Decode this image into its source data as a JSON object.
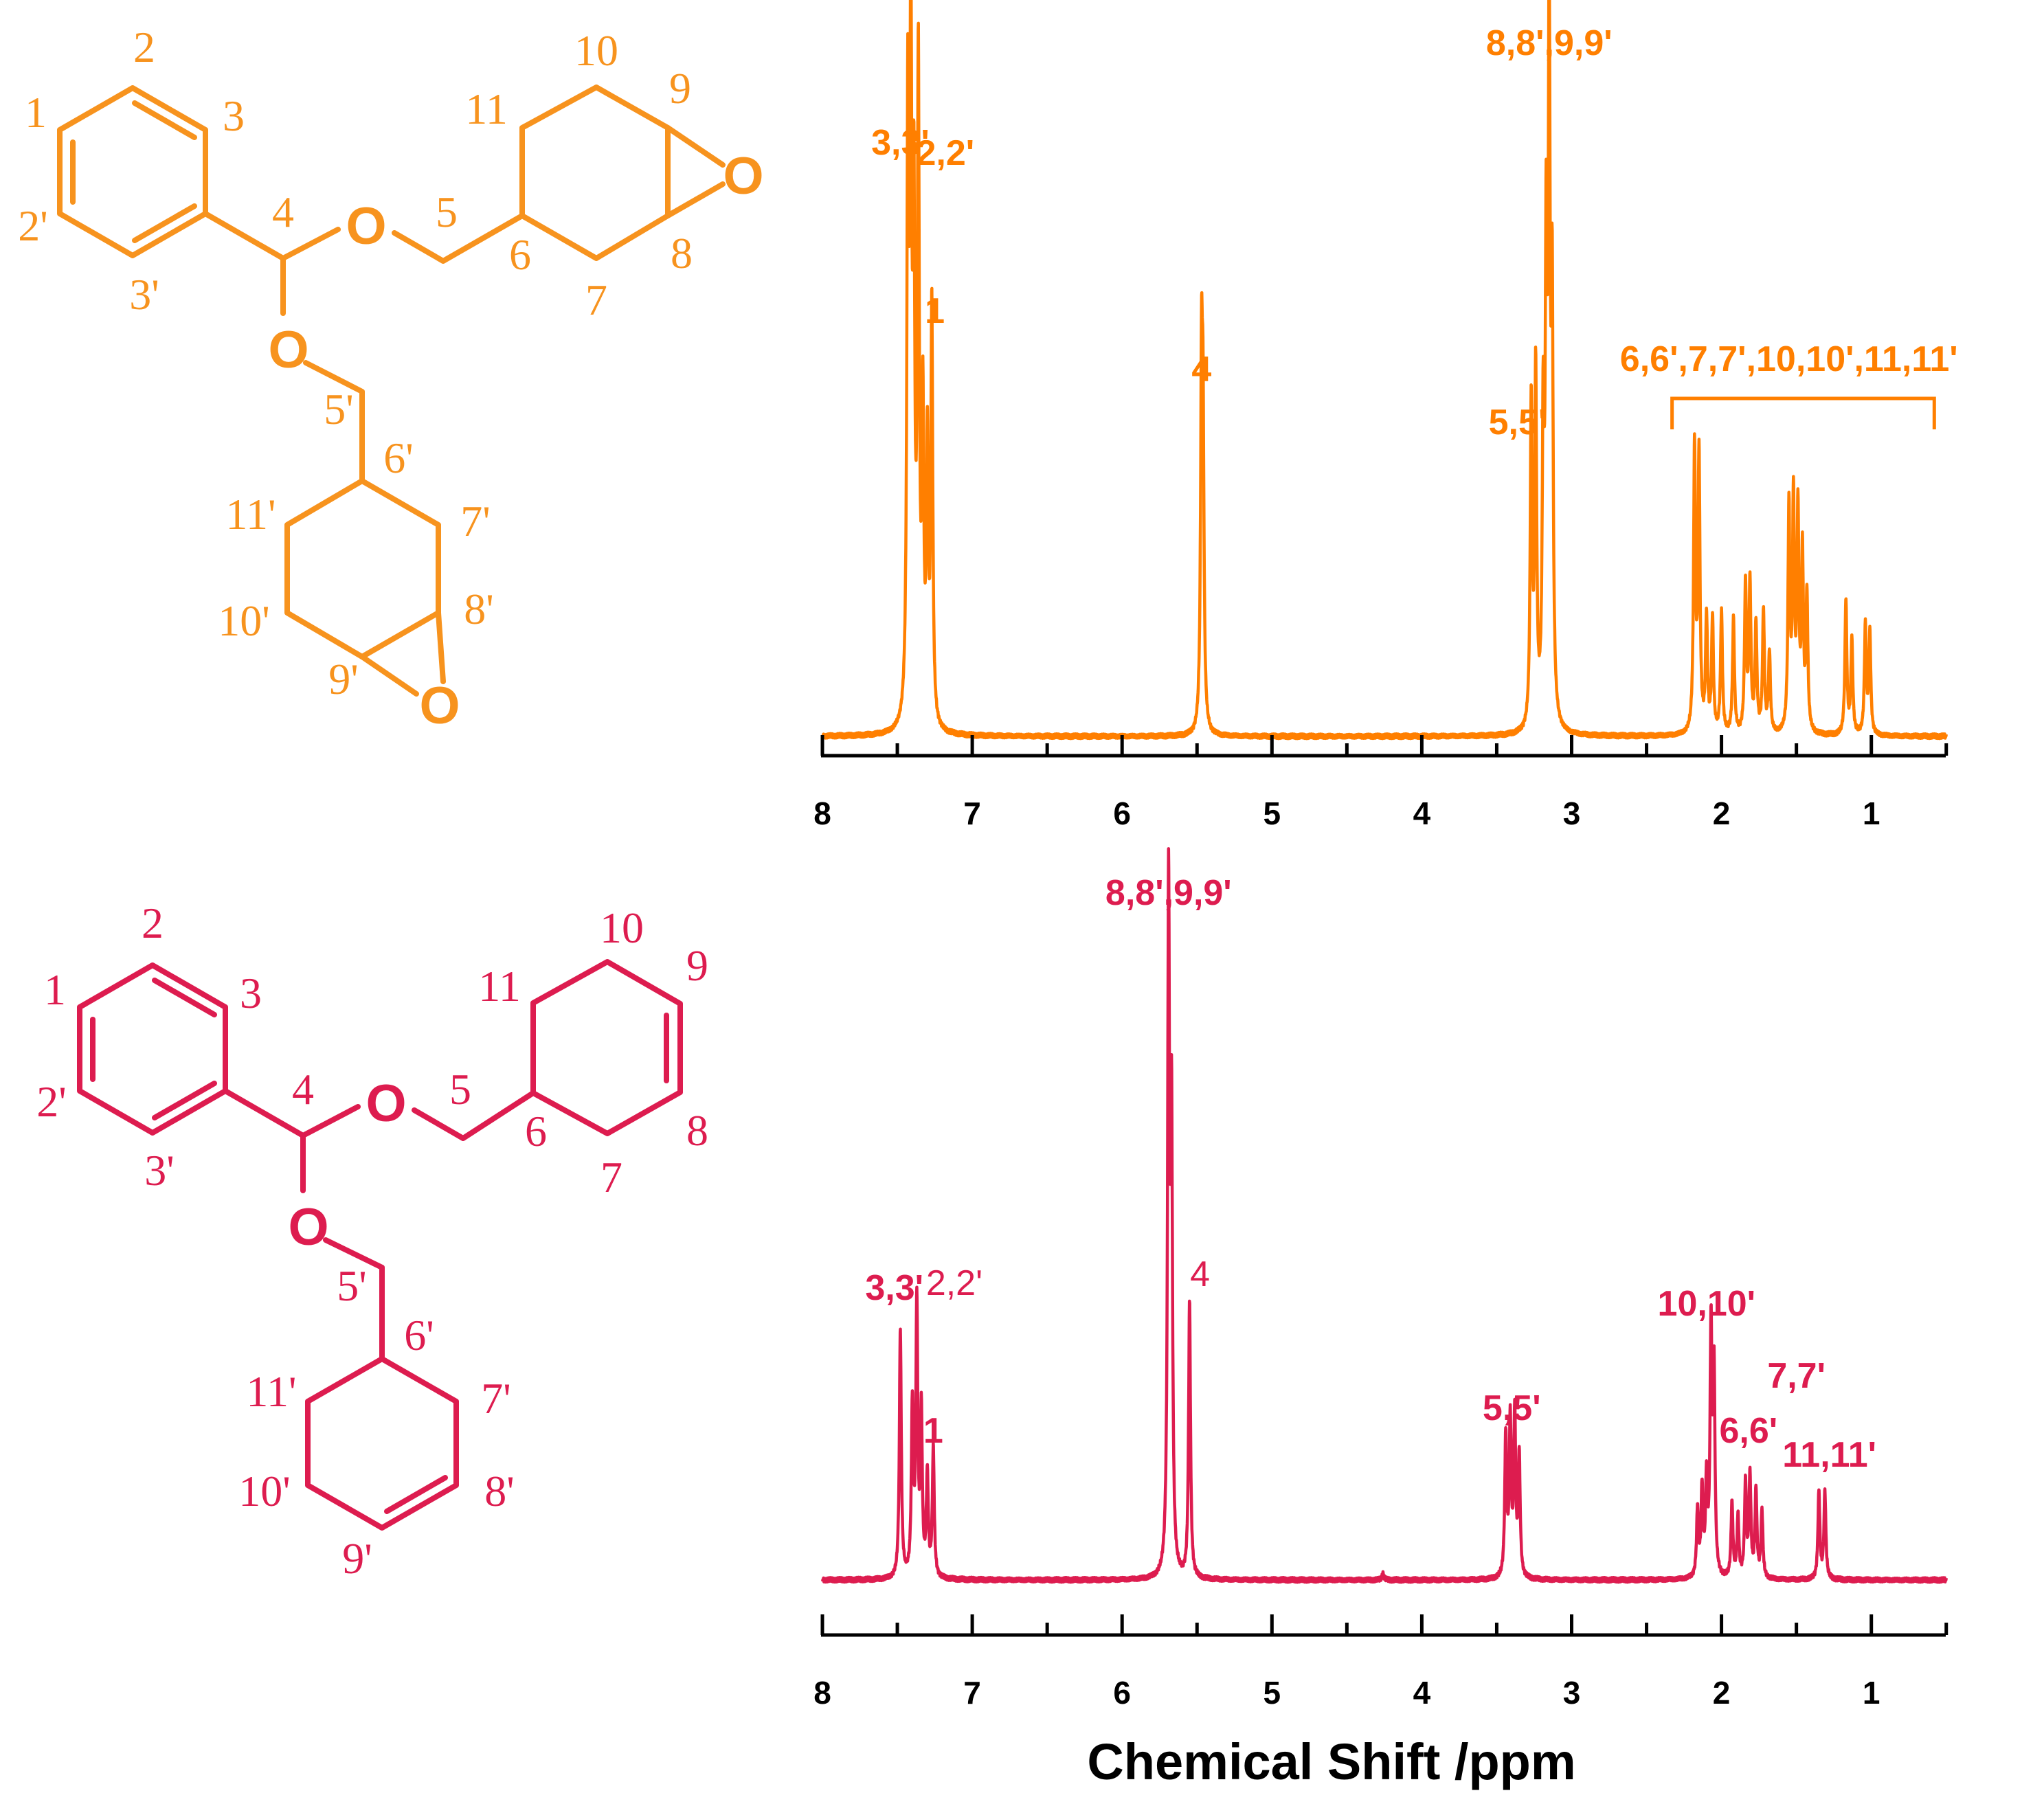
{
  "colors": {
    "top": "#FF7F00",
    "topStructure": "#F7931E",
    "bottom": "#DD1C4F",
    "axis": "#000000"
  },
  "structures": {
    "epoxide": {
      "labels": [
        "2",
        "1",
        "3",
        "2'",
        "3'",
        "4",
        "5",
        "6",
        "10",
        "11",
        "9",
        "8",
        "7",
        "5'",
        "6'",
        "11'",
        "7'",
        "10'",
        "8'",
        "9'"
      ],
      "oxygens": [
        "O",
        "O",
        "O",
        "O"
      ]
    },
    "alkene": {
      "labels": [
        "2",
        "1",
        "3",
        "2'",
        "3'",
        "4",
        "5",
        "6",
        "10",
        "11",
        "9",
        "8",
        "7",
        "5'",
        "6'",
        "11'",
        "7'",
        "10'",
        "8'",
        "9'"
      ],
      "oxygens": [
        "O",
        "O"
      ]
    }
  },
  "xlabel": "Chemical Shift /ppm",
  "chart_data": [
    {
      "type": "line",
      "xlim": [
        8,
        0.5
      ],
      "xticks": [
        8,
        7,
        6,
        5,
        4,
        3,
        2,
        1
      ],
      "peaks": [
        {
          "x": 7.43,
          "y": 0.88
        },
        {
          "x": 7.41,
          "y": 0.97
        },
        {
          "x": 7.39,
          "y": 0.7
        },
        {
          "x": 7.36,
          "y": 0.95
        },
        {
          "x": 7.33,
          "y": 0.45
        },
        {
          "x": 7.3,
          "y": 0.4
        },
        {
          "x": 7.27,
          "y": 0.62
        },
        {
          "x": 5.47,
          "y": 0.5
        },
        {
          "x": 5.46,
          "y": 0.4
        },
        {
          "x": 3.27,
          "y": 0.48
        },
        {
          "x": 3.24,
          "y": 0.52
        },
        {
          "x": 3.19,
          "y": 0.42
        },
        {
          "x": 3.17,
          "y": 0.65
        },
        {
          "x": 3.15,
          "y": 1.0
        },
        {
          "x": 3.13,
          "y": 0.6
        },
        {
          "x": 2.18,
          "y": 0.42
        },
        {
          "x": 2.15,
          "y": 0.41
        },
        {
          "x": 2.1,
          "y": 0.17
        },
        {
          "x": 2.06,
          "y": 0.17
        },
        {
          "x": 2.0,
          "y": 0.18
        },
        {
          "x": 1.92,
          "y": 0.17
        },
        {
          "x": 1.84,
          "y": 0.22
        },
        {
          "x": 1.81,
          "y": 0.22
        },
        {
          "x": 1.77,
          "y": 0.16
        },
        {
          "x": 1.72,
          "y": 0.18
        },
        {
          "x": 1.68,
          "y": 0.12
        },
        {
          "x": 1.55,
          "y": 0.33
        },
        {
          "x": 1.52,
          "y": 0.34
        },
        {
          "x": 1.49,
          "y": 0.32
        },
        {
          "x": 1.46,
          "y": 0.26
        },
        {
          "x": 1.43,
          "y": 0.2
        },
        {
          "x": 1.17,
          "y": 0.2
        },
        {
          "x": 1.13,
          "y": 0.14
        },
        {
          "x": 1.04,
          "y": 0.16
        },
        {
          "x": 1.01,
          "y": 0.15
        }
      ],
      "annotations": [
        {
          "text": "3,3'",
          "x": 7.48
        },
        {
          "text": "2,2'",
          "x": 7.18
        },
        {
          "text": "1",
          "x": 7.25
        },
        {
          "text": "4",
          "x": 5.47
        },
        {
          "text": "5,5'",
          "x": 3.36
        },
        {
          "text": "8,8',9,9'",
          "x": 3.15
        },
        {
          "text": "6,6',7,7',10,10',11,11'",
          "x": 1.55
        }
      ],
      "bracket": [
        2.33,
        0.58
      ]
    },
    {
      "type": "line",
      "xlim": [
        8,
        0.5
      ],
      "xticks": [
        8,
        7,
        6,
        5,
        4,
        3,
        2,
        1
      ],
      "xlabel": "Chemical Shift /ppm",
      "peaks": [
        {
          "x": 7.48,
          "y": 0.37
        },
        {
          "x": 7.4,
          "y": 0.25
        },
        {
          "x": 7.37,
          "y": 0.4
        },
        {
          "x": 7.34,
          "y": 0.24
        },
        {
          "x": 7.3,
          "y": 0.15
        },
        {
          "x": 7.26,
          "y": 0.19
        },
        {
          "x": 5.69,
          "y": 1.0
        },
        {
          "x": 5.67,
          "y": 0.65
        },
        {
          "x": 5.55,
          "y": 0.41
        },
        {
          "x": 4.26,
          "y": 0.01
        },
        {
          "x": 3.44,
          "y": 0.21
        },
        {
          "x": 3.41,
          "y": 0.23
        },
        {
          "x": 3.38,
          "y": 0.24
        },
        {
          "x": 3.35,
          "y": 0.18
        },
        {
          "x": 2.16,
          "y": 0.1
        },
        {
          "x": 2.13,
          "y": 0.13
        },
        {
          "x": 2.1,
          "y": 0.14
        },
        {
          "x": 2.07,
          "y": 0.36
        },
        {
          "x": 2.05,
          "y": 0.3
        },
        {
          "x": 1.93,
          "y": 0.11
        },
        {
          "x": 1.89,
          "y": 0.09
        },
        {
          "x": 1.84,
          "y": 0.14
        },
        {
          "x": 1.81,
          "y": 0.15
        },
        {
          "x": 1.77,
          "y": 0.13
        },
        {
          "x": 1.73,
          "y": 0.1
        },
        {
          "x": 1.35,
          "y": 0.13
        },
        {
          "x": 1.31,
          "y": 0.13
        }
      ],
      "annotations": [
        {
          "text": "3,3'",
          "x": 7.52
        },
        {
          "text": "2,2'",
          "x": 7.12
        },
        {
          "text": "1",
          "x": 7.26
        },
        {
          "text": "8,8',9,9'",
          "x": 5.69
        },
        {
          "text": "4",
          "x": 5.48
        },
        {
          "text": "5,5'",
          "x": 3.4
        },
        {
          "text": "10,10'",
          "x": 2.1
        },
        {
          "text": "7,7'",
          "x": 1.5
        },
        {
          "text": "6,6'",
          "x": 1.82
        },
        {
          "text": "11,11'",
          "x": 1.28
        }
      ]
    }
  ]
}
